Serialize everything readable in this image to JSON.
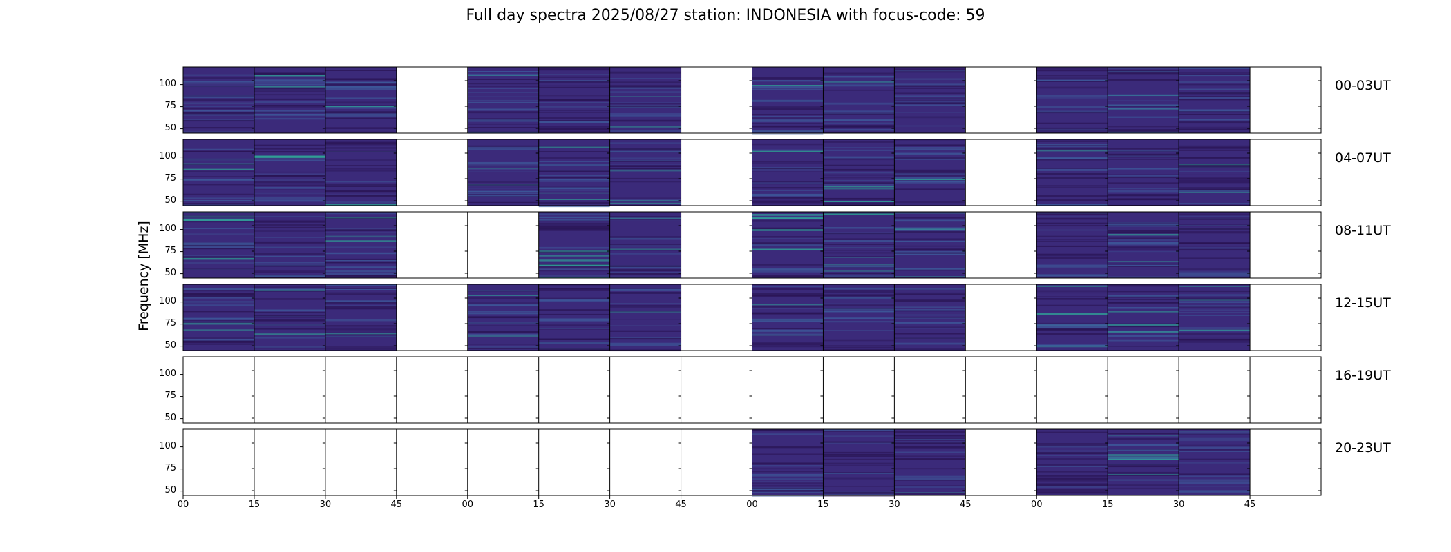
{
  "chart_data": {
    "type": "heatmap",
    "title": "Full day spectra 2025/08/27 station: INDONESIA with focus-code: 59",
    "ylabel": "Frequency [MHz]",
    "xlabel": "",
    "ylim": [
      45,
      120
    ],
    "yticks": [
      "100",
      "75",
      "50"
    ],
    "xticks": [
      "00",
      "15",
      "30",
      "45",
      "00",
      "15",
      "30",
      "45",
      "00",
      "15",
      "30",
      "45",
      "00",
      "15",
      "30",
      "45"
    ],
    "colormap": "viridis",
    "rows": [
      {
        "label": "00-03UT",
        "panels": [
          1,
          1,
          1,
          0,
          1,
          1,
          1,
          0,
          1,
          1,
          1,
          0,
          1,
          1,
          1,
          0
        ]
      },
      {
        "label": "04-07UT",
        "panels": [
          1,
          1,
          1,
          0,
          1,
          1,
          1,
          0,
          1,
          1,
          1,
          0,
          1,
          1,
          1,
          0
        ]
      },
      {
        "label": "08-11UT",
        "panels": [
          1,
          1,
          1,
          0,
          0,
          1,
          1,
          0,
          1,
          1,
          1,
          0,
          1,
          1,
          1,
          0
        ]
      },
      {
        "label": "12-15UT",
        "panels": [
          1,
          1,
          1,
          0,
          1,
          1,
          1,
          0,
          1,
          1,
          1,
          0,
          1,
          1,
          1,
          0
        ]
      },
      {
        "label": "16-19UT",
        "panels": [
          0,
          0,
          0,
          0,
          0,
          0,
          0,
          0,
          0,
          0,
          0,
          0,
          0,
          0,
          0,
          0
        ]
      },
      {
        "label": "20-23UT",
        "panels": [
          0,
          0,
          0,
          0,
          0,
          0,
          0,
          0,
          1,
          1,
          1,
          0,
          1,
          1,
          1,
          0
        ]
      }
    ],
    "colors": {
      "background": "#3b2a7a",
      "band_light": "#3d5a9a",
      "band_teal": "#2fb09a",
      "band_dark": "#2a1555"
    }
  }
}
